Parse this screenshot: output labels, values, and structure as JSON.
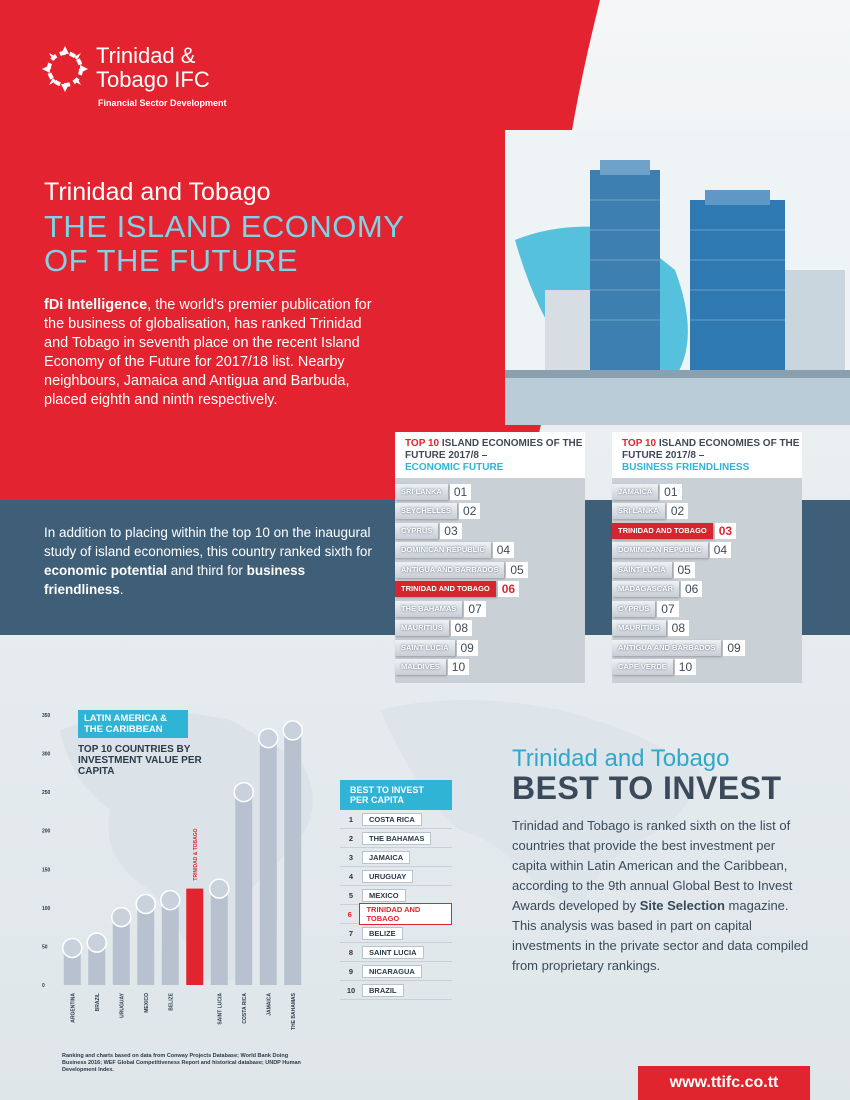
{
  "logo": {
    "line1": "Trinidad &",
    "line2": "Tobago IFC",
    "sub": "Financial Sector Development"
  },
  "header": {
    "title_small": "Trinidad and Tobago",
    "title_big": "THE ISLAND ECONOMY OF THE FUTURE"
  },
  "intro": {
    "bold": "fDi Intelligence",
    "text": ", the world's premier publication for the business of globalisation, has ranked Trinidad and Tobago in seventh place on the recent Island Economy of the Future for 2017/18 list. Nearby neighbours, Jamaica and Antigua and Barbuda, placed eighth and ninth respectively."
  },
  "band": {
    "t1": "In addition to placing within the top 10 on the inaugural study of island economies, this country ranked sixth for ",
    "b1": "economic potential",
    "t2": " and third for ",
    "b2": "business friendliness",
    "t3": "."
  },
  "rank_economic": {
    "head_red": "TOP 10",
    "head_text": " ISLAND ECONOMIES OF THE FUTURE 2017/8 –",
    "head_blue": "ECONOMIC FUTURE",
    "rows": [
      {
        "name": "SRI LANKA",
        "num": "01"
      },
      {
        "name": "SEYCHELLES",
        "num": "02"
      },
      {
        "name": "CYPRUS",
        "num": "03"
      },
      {
        "name": "DOMINICAN REPUBLIC",
        "num": "04"
      },
      {
        "name": "ANTIGUA AND BARBADOS",
        "num": "05"
      },
      {
        "name": "TRINIDAD AND TOBAGO",
        "num": "06"
      },
      {
        "name": "THE BAHAMAS",
        "num": "07"
      },
      {
        "name": "MAURITIUS",
        "num": "08"
      },
      {
        "name": "SAINT LUCIA",
        "num": "09"
      },
      {
        "name": "MALDIVES",
        "num": "10"
      }
    ]
  },
  "rank_business": {
    "head_red": "TOP 10",
    "head_text": " ISLAND ECONOMIES OF THE FUTURE 2017/8 –",
    "head_blue": "BUSINESS FRIENDLINESS",
    "rows": [
      {
        "name": "JAMAICA",
        "num": "01"
      },
      {
        "name": "SRI LANKA",
        "num": "02"
      },
      {
        "name": "TRINIDAD AND TOBAGO",
        "num": "03"
      },
      {
        "name": "DOMINICAN REPUBLIC",
        "num": "04"
      },
      {
        "name": "SAINT LUCIA",
        "num": "05"
      },
      {
        "name": "MADAGASCAR",
        "num": "06"
      },
      {
        "name": "CYPRUS",
        "num": "07"
      },
      {
        "name": "MAURITIUS",
        "num": "08"
      },
      {
        "name": "ANTIGUA AND BARBADOS",
        "num": "09"
      },
      {
        "name": "CAPE VERDE",
        "num": "10"
      }
    ]
  },
  "chart_data": {
    "type": "bar",
    "title": "TOP 10 COUNTRIES BY INVESTMENT VALUE PER CAPITA",
    "badge": "LATIN AMERICA & THE CARIBBEAN",
    "categories": [
      "ARGENTINA",
      "BRAZIL",
      "URUGUAY",
      "MEXICO",
      "BELIZE",
      "TRINIDAD & TOBAGO",
      "SAINT LUCIA",
      "COSTA RICA",
      "JAMAICA",
      "THE BAHAMAS"
    ],
    "values": [
      48,
      55,
      88,
      105,
      110,
      125,
      125,
      250,
      320,
      330
    ],
    "ylim": [
      0,
      350
    ],
    "yticks": [
      "0",
      "50",
      "100",
      "150",
      "200",
      "250",
      "300",
      "350"
    ],
    "highlight": "TRINIDAD & TOBAGO",
    "colors": {
      "bar": "#b8c1cf",
      "highlight": "#e0252f"
    }
  },
  "best_invest": {
    "head": "BEST TO INVEST PER CAPITA",
    "rows": [
      {
        "num": "1",
        "name": "COSTA RICA"
      },
      {
        "num": "2",
        "name": "THE BAHAMAS"
      },
      {
        "num": "3",
        "name": "JAMAICA"
      },
      {
        "num": "4",
        "name": "URUGUAY"
      },
      {
        "num": "5",
        "name": "MEXICO"
      },
      {
        "num": "6",
        "name": "TRINIDAD AND TOBAGO"
      },
      {
        "num": "7",
        "name": "BELIZE"
      },
      {
        "num": "8",
        "name": "SAINT LUCIA"
      },
      {
        "num": "9",
        "name": "NICARAGUA"
      },
      {
        "num": "10",
        "name": "BRAZIL"
      }
    ]
  },
  "section": {
    "title": "Trinidad and Tobago",
    "big": "BEST TO INVEST",
    "t1": "Trinidad and Tobago is ranked sixth on the list of countries that provide the best investment per capita within Latin American and the Caribbean, according to the 9th annual Global Best to Invest Awards developed by ",
    "b1": "Site Selection",
    "t2": " magazine. This analysis was based in part on capital investments in the private sector and data compiled from proprietary rankings."
  },
  "footnote": "Ranking and charts based on data from Conway Projects Database; World Bank Doing Business 2016; WEF Global Competitiveness Report and historical database; UNDP Human Development Index.",
  "url": "www.ttifc.co.tt",
  "colors": {
    "red": "#e0252f",
    "blue": "#2fb4d6",
    "band": "#3f5f79"
  }
}
